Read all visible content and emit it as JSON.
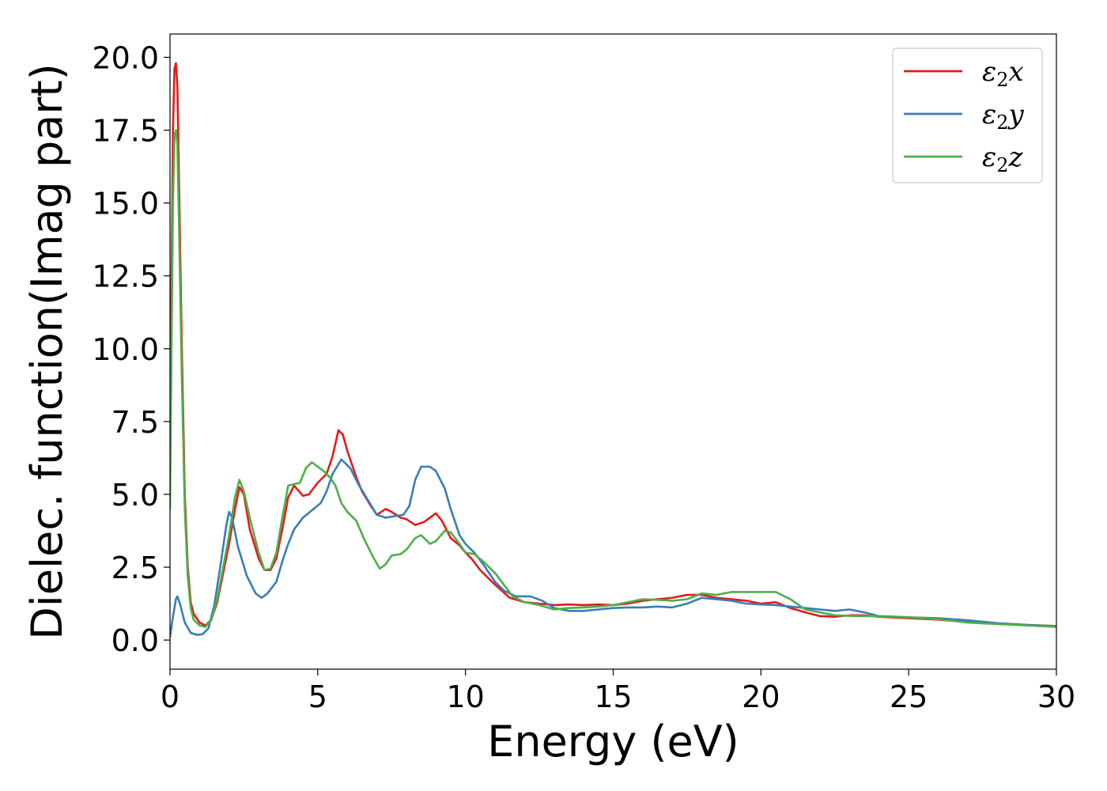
{
  "chart_data": {
    "type": "line",
    "title": "",
    "xlabel": "Energy (eV)",
    "ylabel": "Dielec. function(Imag part)",
    "xlim": [
      0,
      30
    ],
    "ylim": [
      -1.0,
      20.8
    ],
    "xticks": [
      0,
      5,
      10,
      15,
      20,
      25,
      30
    ],
    "xtick_labels": [
      "0",
      "5",
      "10",
      "15",
      "20",
      "25",
      "30"
    ],
    "yticks": [
      0.0,
      2.5,
      5.0,
      7.5,
      10.0,
      12.5,
      15.0,
      17.5,
      20.0
    ],
    "ytick_labels": [
      "0.0",
      "2.5",
      "5.0",
      "7.5",
      "10.0",
      "12.5",
      "15.0",
      "17.5",
      "20.0"
    ],
    "grid": false,
    "legend_position": "top-right",
    "series": [
      {
        "name": "ε₂x",
        "legend_base": "ε",
        "legend_sub": "2",
        "legend_var": "x",
        "color": "#e41a1c",
        "points": [
          [
            0.0,
            5.0
          ],
          [
            0.05,
            12.0
          ],
          [
            0.1,
            17.5
          ],
          [
            0.15,
            19.6
          ],
          [
            0.2,
            19.8
          ],
          [
            0.25,
            19.0
          ],
          [
            0.3,
            16.0
          ],
          [
            0.4,
            10.0
          ],
          [
            0.5,
            5.0
          ],
          [
            0.6,
            2.5
          ],
          [
            0.7,
            1.3
          ],
          [
            0.8,
            0.9
          ],
          [
            1.0,
            0.6
          ],
          [
            1.2,
            0.5
          ],
          [
            1.4,
            0.7
          ],
          [
            1.6,
            1.3
          ],
          [
            1.8,
            2.3
          ],
          [
            2.0,
            3.3
          ],
          [
            2.2,
            4.5
          ],
          [
            2.35,
            5.25
          ],
          [
            2.5,
            5.0
          ],
          [
            2.7,
            3.8
          ],
          [
            3.0,
            2.8
          ],
          [
            3.2,
            2.4
          ],
          [
            3.4,
            2.4
          ],
          [
            3.6,
            2.8
          ],
          [
            3.8,
            3.8
          ],
          [
            4.0,
            4.9
          ],
          [
            4.2,
            5.3
          ],
          [
            4.5,
            4.95
          ],
          [
            4.7,
            5.0
          ],
          [
            5.0,
            5.4
          ],
          [
            5.3,
            5.7
          ],
          [
            5.5,
            6.3
          ],
          [
            5.7,
            7.2
          ],
          [
            5.85,
            7.05
          ],
          [
            6.0,
            6.5
          ],
          [
            6.3,
            5.6
          ],
          [
            6.5,
            5.1
          ],
          [
            6.8,
            4.6
          ],
          [
            7.0,
            4.3
          ],
          [
            7.3,
            4.5
          ],
          [
            7.5,
            4.4
          ],
          [
            7.8,
            4.2
          ],
          [
            8.0,
            4.15
          ],
          [
            8.3,
            3.95
          ],
          [
            8.6,
            4.05
          ],
          [
            9.0,
            4.35
          ],
          [
            9.2,
            4.1
          ],
          [
            9.5,
            3.5
          ],
          [
            9.8,
            3.25
          ],
          [
            10.0,
            3.0
          ],
          [
            10.2,
            2.8
          ],
          [
            10.5,
            2.4
          ],
          [
            11.0,
            1.9
          ],
          [
            11.5,
            1.45
          ],
          [
            12.0,
            1.3
          ],
          [
            12.5,
            1.25
          ],
          [
            13.0,
            1.2
          ],
          [
            13.5,
            1.22
          ],
          [
            14.0,
            1.2
          ],
          [
            14.5,
            1.22
          ],
          [
            15.0,
            1.2
          ],
          [
            15.5,
            1.25
          ],
          [
            16.0,
            1.35
          ],
          [
            16.5,
            1.4
          ],
          [
            17.0,
            1.45
          ],
          [
            17.5,
            1.55
          ],
          [
            18.0,
            1.55
          ],
          [
            18.5,
            1.45
          ],
          [
            19.0,
            1.4
          ],
          [
            19.5,
            1.35
          ],
          [
            20.0,
            1.25
          ],
          [
            20.5,
            1.3
          ],
          [
            21.0,
            1.1
          ],
          [
            21.5,
            0.95
          ],
          [
            22.0,
            0.82
          ],
          [
            22.5,
            0.8
          ],
          [
            23.0,
            0.85
          ],
          [
            23.5,
            0.85
          ],
          [
            24.0,
            0.8
          ],
          [
            25.0,
            0.75
          ],
          [
            26.0,
            0.7
          ],
          [
            27.0,
            0.62
          ],
          [
            28.0,
            0.57
          ],
          [
            29.0,
            0.52
          ],
          [
            30.0,
            0.48
          ]
        ]
      },
      {
        "name": "ε₂y",
        "legend_base": "ε",
        "legend_sub": "2",
        "legend_var": "y",
        "color": "#377eb8",
        "points": [
          [
            0.0,
            0.1
          ],
          [
            0.1,
            0.8
          ],
          [
            0.2,
            1.4
          ],
          [
            0.25,
            1.5
          ],
          [
            0.35,
            1.2
          ],
          [
            0.5,
            0.6
          ],
          [
            0.7,
            0.25
          ],
          [
            0.9,
            0.18
          ],
          [
            1.1,
            0.2
          ],
          [
            1.3,
            0.4
          ],
          [
            1.5,
            1.2
          ],
          [
            1.7,
            2.5
          ],
          [
            1.9,
            3.9
          ],
          [
            2.0,
            4.4
          ],
          [
            2.1,
            4.2
          ],
          [
            2.3,
            3.2
          ],
          [
            2.6,
            2.2
          ],
          [
            2.9,
            1.6
          ],
          [
            3.1,
            1.45
          ],
          [
            3.3,
            1.6
          ],
          [
            3.6,
            2.0
          ],
          [
            3.8,
            2.7
          ],
          [
            4.0,
            3.3
          ],
          [
            4.2,
            3.8
          ],
          [
            4.5,
            4.2
          ],
          [
            4.8,
            4.45
          ],
          [
            5.1,
            4.7
          ],
          [
            5.3,
            5.1
          ],
          [
            5.5,
            5.7
          ],
          [
            5.8,
            6.2
          ],
          [
            6.1,
            5.9
          ],
          [
            6.4,
            5.3
          ],
          [
            6.7,
            4.8
          ],
          [
            7.0,
            4.3
          ],
          [
            7.3,
            4.2
          ],
          [
            7.6,
            4.25
          ],
          [
            7.9,
            4.3
          ],
          [
            8.1,
            4.6
          ],
          [
            8.3,
            5.5
          ],
          [
            8.5,
            5.95
          ],
          [
            8.8,
            5.95
          ],
          [
            9.0,
            5.8
          ],
          [
            9.3,
            5.2
          ],
          [
            9.5,
            4.5
          ],
          [
            9.8,
            3.6
          ],
          [
            10.0,
            3.3
          ],
          [
            10.3,
            3.0
          ],
          [
            10.6,
            2.6
          ],
          [
            11.0,
            2.0
          ],
          [
            11.3,
            1.7
          ],
          [
            11.7,
            1.5
          ],
          [
            12.2,
            1.5
          ],
          [
            12.6,
            1.35
          ],
          [
            13.0,
            1.1
          ],
          [
            13.5,
            1.0
          ],
          [
            14.0,
            1.0
          ],
          [
            14.5,
            1.05
          ],
          [
            15.0,
            1.1
          ],
          [
            15.5,
            1.12
          ],
          [
            16.0,
            1.12
          ],
          [
            16.5,
            1.15
          ],
          [
            17.0,
            1.12
          ],
          [
            17.5,
            1.25
          ],
          [
            18.0,
            1.45
          ],
          [
            18.5,
            1.4
          ],
          [
            19.0,
            1.35
          ],
          [
            19.5,
            1.25
          ],
          [
            20.0,
            1.22
          ],
          [
            20.5,
            1.2
          ],
          [
            21.0,
            1.15
          ],
          [
            21.5,
            1.1
          ],
          [
            22.0,
            1.05
          ],
          [
            22.5,
            1.0
          ],
          [
            23.0,
            1.05
          ],
          [
            23.5,
            0.95
          ],
          [
            24.0,
            0.82
          ],
          [
            25.0,
            0.78
          ],
          [
            26.0,
            0.75
          ],
          [
            27.0,
            0.68
          ],
          [
            28.0,
            0.58
          ],
          [
            29.0,
            0.52
          ],
          [
            30.0,
            0.47
          ]
        ]
      },
      {
        "name": "ε₂z",
        "legend_base": "ε",
        "legend_sub": "2",
        "legend_var": "z",
        "color": "#4daf4a",
        "points": [
          [
            0.0,
            4.5
          ],
          [
            0.05,
            10.0
          ],
          [
            0.1,
            15.0
          ],
          [
            0.15,
            17.3
          ],
          [
            0.2,
            17.5
          ],
          [
            0.25,
            17.0
          ],
          [
            0.3,
            14.5
          ],
          [
            0.4,
            9.0
          ],
          [
            0.5,
            4.5
          ],
          [
            0.6,
            2.2
          ],
          [
            0.7,
            1.1
          ],
          [
            0.8,
            0.7
          ],
          [
            1.0,
            0.5
          ],
          [
            1.2,
            0.45
          ],
          [
            1.4,
            0.7
          ],
          [
            1.6,
            1.4
          ],
          [
            1.8,
            2.5
          ],
          [
            2.0,
            3.6
          ],
          [
            2.2,
            4.9
          ],
          [
            2.35,
            5.5
          ],
          [
            2.5,
            5.1
          ],
          [
            2.7,
            4.2
          ],
          [
            3.0,
            3.0
          ],
          [
            3.2,
            2.4
          ],
          [
            3.4,
            2.45
          ],
          [
            3.6,
            3.0
          ],
          [
            3.8,
            4.2
          ],
          [
            4.0,
            5.3
          ],
          [
            4.2,
            5.35
          ],
          [
            4.4,
            5.4
          ],
          [
            4.6,
            5.9
          ],
          [
            4.8,
            6.1
          ],
          [
            5.0,
            5.95
          ],
          [
            5.2,
            5.8
          ],
          [
            5.4,
            5.6
          ],
          [
            5.6,
            5.3
          ],
          [
            5.8,
            4.7
          ],
          [
            6.0,
            4.4
          ],
          [
            6.3,
            4.1
          ],
          [
            6.6,
            3.4
          ],
          [
            6.9,
            2.8
          ],
          [
            7.1,
            2.45
          ],
          [
            7.3,
            2.6
          ],
          [
            7.5,
            2.9
          ],
          [
            7.8,
            2.95
          ],
          [
            8.0,
            3.1
          ],
          [
            8.3,
            3.5
          ],
          [
            8.5,
            3.6
          ],
          [
            8.8,
            3.3
          ],
          [
            9.0,
            3.4
          ],
          [
            9.3,
            3.75
          ],
          [
            9.5,
            3.7
          ],
          [
            9.8,
            3.3
          ],
          [
            10.0,
            3.0
          ],
          [
            10.3,
            2.95
          ],
          [
            10.6,
            2.7
          ],
          [
            11.0,
            2.3
          ],
          [
            11.3,
            1.9
          ],
          [
            11.6,
            1.5
          ],
          [
            12.0,
            1.3
          ],
          [
            12.5,
            1.2
          ],
          [
            13.0,
            1.05
          ],
          [
            13.5,
            1.1
          ],
          [
            14.0,
            1.12
          ],
          [
            14.5,
            1.15
          ],
          [
            15.0,
            1.2
          ],
          [
            15.5,
            1.3
          ],
          [
            16.0,
            1.4
          ],
          [
            16.5,
            1.38
          ],
          [
            17.0,
            1.35
          ],
          [
            17.5,
            1.4
          ],
          [
            18.0,
            1.6
          ],
          [
            18.5,
            1.55
          ],
          [
            19.0,
            1.65
          ],
          [
            19.5,
            1.65
          ],
          [
            20.0,
            1.65
          ],
          [
            20.5,
            1.65
          ],
          [
            21.0,
            1.4
          ],
          [
            21.5,
            1.05
          ],
          [
            22.0,
            0.95
          ],
          [
            22.5,
            0.85
          ],
          [
            23.0,
            0.83
          ],
          [
            23.5,
            0.82
          ],
          [
            24.0,
            0.82
          ],
          [
            25.0,
            0.78
          ],
          [
            26.0,
            0.72
          ],
          [
            27.0,
            0.6
          ],
          [
            28.0,
            0.55
          ],
          [
            29.0,
            0.5
          ],
          [
            30.0,
            0.45
          ]
        ]
      }
    ]
  }
}
